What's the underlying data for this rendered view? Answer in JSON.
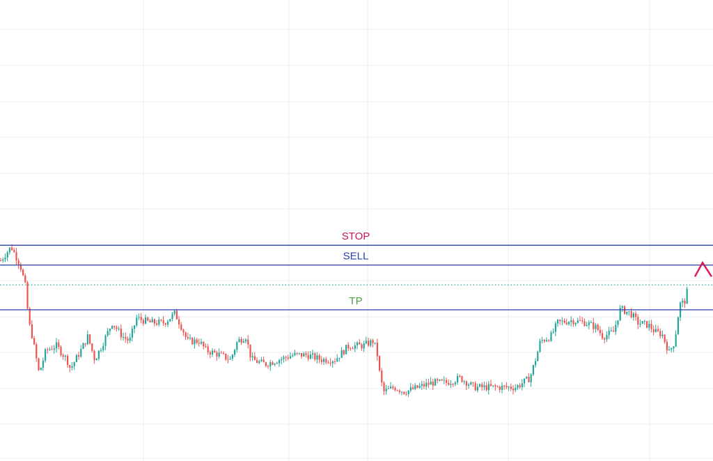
{
  "chart_data": {
    "type": "candlestick",
    "title": "",
    "xlabel": "",
    "ylabel": "",
    "grid": true,
    "ylim": [
      0,
      100
    ],
    "colors": {
      "background": "#ffffff",
      "grid": "#eeeeee",
      "up": "#26a69a",
      "down": "#ef5350",
      "level_line": "#2a3fa8",
      "stop_label": "#c2185b",
      "sell_label": "#2a3fa8",
      "tp_label": "#4f9a4a",
      "current_price_line": "#26a69a",
      "arrow": "#d81b60"
    },
    "levels": [
      {
        "label": "STOP",
        "value": 46.8,
        "style": "solid",
        "label_color": "#c2185b"
      },
      {
        "label": "SELL",
        "value": 42.5,
        "style": "solid",
        "label_color": "#2a3fa8"
      },
      {
        "label": "TP",
        "value": 32.8,
        "style": "solid",
        "label_color": "#4f9a4a"
      }
    ],
    "current_price": {
      "value": 38.2,
      "style": "dotted"
    },
    "annotation": {
      "type": "arrow-down",
      "near_value": 40.0
    },
    "price_path": [
      [
        0,
        43.5
      ],
      [
        15,
        46.5
      ],
      [
        28,
        42.5
      ],
      [
        36,
        37.5
      ],
      [
        40,
        30
      ],
      [
        44,
        28
      ],
      [
        55,
        19
      ],
      [
        65,
        24
      ],
      [
        80,
        25
      ],
      [
        95,
        22
      ],
      [
        100,
        20
      ],
      [
        115,
        24
      ],
      [
        125,
        27
      ],
      [
        135,
        22
      ],
      [
        145,
        25
      ],
      [
        160,
        30
      ],
      [
        175,
        27
      ],
      [
        185,
        26
      ],
      [
        195,
        31
      ],
      [
        215,
        30
      ],
      [
        235,
        30
      ],
      [
        250,
        32
      ],
      [
        260,
        29
      ],
      [
        268,
        26
      ],
      [
        285,
        26
      ],
      [
        295,
        24
      ],
      [
        315,
        23
      ],
      [
        330,
        22
      ],
      [
        340,
        26
      ],
      [
        352,
        27
      ],
      [
        360,
        22
      ],
      [
        380,
        21
      ],
      [
        400,
        22
      ],
      [
        420,
        23
      ],
      [
        440,
        23
      ],
      [
        460,
        22
      ],
      [
        480,
        22
      ],
      [
        500,
        25
      ],
      [
        520,
        25
      ],
      [
        535,
        26
      ],
      [
        540,
        24
      ],
      [
        545,
        18
      ],
      [
        550,
        15
      ],
      [
        565,
        16
      ],
      [
        580,
        15
      ],
      [
        600,
        16
      ],
      [
        620,
        17
      ],
      [
        640,
        17
      ],
      [
        660,
        18
      ],
      [
        670,
        17
      ],
      [
        680,
        16
      ],
      [
        700,
        16
      ],
      [
        720,
        16
      ],
      [
        740,
        16
      ],
      [
        760,
        18
      ],
      [
        770,
        23
      ],
      [
        775,
        26
      ],
      [
        790,
        27
      ],
      [
        800,
        30
      ],
      [
        820,
        30.5
      ],
      [
        840,
        30
      ],
      [
        855,
        29
      ],
      [
        865,
        27
      ],
      [
        880,
        28
      ],
      [
        890,
        33
      ],
      [
        905,
        32
      ],
      [
        915,
        30
      ],
      [
        930,
        29.5
      ],
      [
        940,
        28
      ],
      [
        950,
        27.5
      ],
      [
        960,
        23.5
      ],
      [
        968,
        26
      ],
      [
        975,
        34
      ],
      [
        982,
        34.5
      ],
      [
        988,
        38
      ]
    ]
  }
}
